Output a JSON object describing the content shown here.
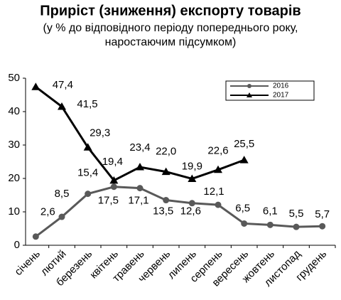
{
  "chart_data": {
    "type": "line",
    "title": "Приріст (зниження) експорту товарів",
    "subtitle": [
      "(у % до відповідного періоду попереднього року,",
      "наростаючим підсумком)"
    ],
    "categories": [
      "січень",
      "лютий",
      "березень",
      "квітень",
      "травень",
      "червень",
      "липень",
      "серпень",
      "вересень",
      "жовтень",
      "листопад",
      "грудень"
    ],
    "series": [
      {
        "name": "2016",
        "color": "#595959",
        "marker": "circle",
        "values": [
          2.6,
          8.5,
          15.4,
          17.5,
          17.1,
          13.5,
          12.6,
          12.1,
          6.5,
          6.1,
          5.5,
          5.7
        ],
        "value_labels": [
          "2,6",
          "8,5",
          "15,4",
          "17,5",
          "17,1",
          "13,5",
          "12,6",
          "12,1",
          "6,5",
          "6,1",
          "5,5",
          "5,7"
        ]
      },
      {
        "name": "2017",
        "color": "#000000",
        "marker": "triangle",
        "values": [
          47.4,
          41.5,
          29.3,
          19.4,
          23.4,
          22.0,
          19.9,
          22.6,
          25.5,
          null,
          null,
          null
        ],
        "value_labels": [
          "47,4",
          "41,5",
          "29,3",
          "19,4",
          "23,4",
          "22,0",
          "19,9",
          "22,6",
          "25,5",
          null,
          null,
          null
        ]
      }
    ],
    "ylim": [
      0,
      50
    ],
    "yticks": [
      0,
      10,
      20,
      30,
      40,
      50
    ],
    "grid": false,
    "legend": "upper right"
  }
}
